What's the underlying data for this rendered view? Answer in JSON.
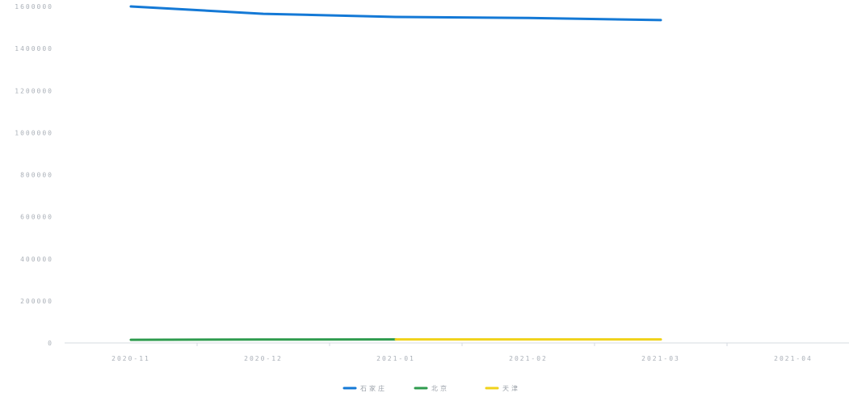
{
  "chart_data": {
    "type": "line",
    "categories": [
      "2020-11",
      "2020-12",
      "2021-01",
      "2021-02",
      "2021-03",
      "2021-04"
    ],
    "ylim": [
      0,
      1600000
    ],
    "y_ticks": [
      "1600000",
      "1400000",
      "1200000",
      "1000000",
      "800000",
      "600000",
      "400000",
      "200000",
      "0"
    ],
    "grid": false,
    "legend_position": "bottom-center",
    "series": [
      {
        "name": "石家庄",
        "color": "#1479d6",
        "values": [
          1600000,
          1565000,
          1550000,
          1545000,
          1535000,
          null
        ]
      },
      {
        "name": "北京",
        "color": "#2e9b4e",
        "values": [
          15000,
          16000,
          17000,
          null,
          null,
          null
        ]
      },
      {
        "name": "天津",
        "color": "#f0d21a",
        "values": [
          null,
          null,
          17000,
          17000,
          17000,
          null
        ]
      }
    ]
  }
}
